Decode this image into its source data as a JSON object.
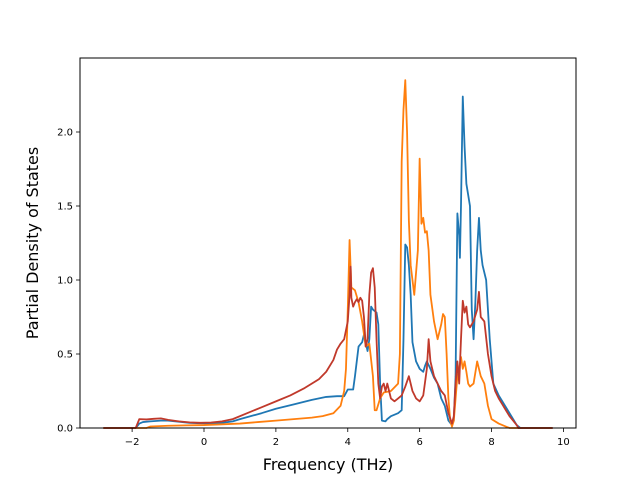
{
  "chart_data": {
    "type": "line",
    "title": "",
    "xlabel": "Frequency (THz)",
    "ylabel": "Partial Density of States",
    "xlim": [
      -3.45,
      10.35
    ],
    "ylim": [
      0,
      2.5
    ],
    "xticks": [
      -2,
      0,
      2,
      4,
      6,
      8,
      10
    ],
    "xtick_labels": [
      "−2",
      "0",
      "2",
      "4",
      "6",
      "8",
      "10"
    ],
    "yticks": [
      0,
      0.5,
      1.0,
      1.5,
      2.0
    ],
    "ytick_labels": [
      "0.0",
      "0.5",
      "1.0",
      "1.5",
      "2.0"
    ],
    "grid": false,
    "legend": "none",
    "series": [
      {
        "color": "#1f77b4",
        "points": [
          [
            -2.8,
            0
          ],
          [
            -1.9,
            0
          ],
          [
            -1.8,
            0.03
          ],
          [
            -1.7,
            0.04
          ],
          [
            -1.5,
            0.045
          ],
          [
            -1.2,
            0.05
          ],
          [
            -1.0,
            0.05
          ],
          [
            -0.8,
            0.045
          ],
          [
            -0.6,
            0.04
          ],
          [
            -0.4,
            0.035
          ],
          [
            -0.1,
            0.032
          ],
          [
            0.2,
            0.03
          ],
          [
            0.5,
            0.035
          ],
          [
            0.8,
            0.045
          ],
          [
            1.0,
            0.06
          ],
          [
            1.3,
            0.08
          ],
          [
            1.6,
            0.1
          ],
          [
            2.0,
            0.13
          ],
          [
            2.5,
            0.16
          ],
          [
            3.0,
            0.19
          ],
          [
            3.4,
            0.21
          ],
          [
            3.7,
            0.215
          ],
          [
            3.9,
            0.215
          ],
          [
            4.0,
            0.26
          ],
          [
            4.15,
            0.26
          ],
          [
            4.2,
            0.35
          ],
          [
            4.3,
            0.55
          ],
          [
            4.4,
            0.58
          ],
          [
            4.45,
            0.63
          ],
          [
            4.5,
            0.58
          ],
          [
            4.55,
            0.52
          ],
          [
            4.6,
            0.6
          ],
          [
            4.65,
            0.82
          ],
          [
            4.7,
            0.8
          ],
          [
            4.8,
            0.78
          ],
          [
            4.85,
            0.7
          ],
          [
            4.9,
            0.3
          ],
          [
            4.95,
            0.05
          ],
          [
            5.05,
            0.045
          ],
          [
            5.1,
            0.06
          ],
          [
            5.2,
            0.08
          ],
          [
            5.4,
            0.1
          ],
          [
            5.5,
            0.12
          ],
          [
            5.55,
            0.6
          ],
          [
            5.6,
            1.24
          ],
          [
            5.65,
            1.22
          ],
          [
            5.7,
            1.1
          ],
          [
            5.75,
            0.9
          ],
          [
            5.8,
            0.58
          ],
          [
            5.9,
            0.45
          ],
          [
            6.0,
            0.4
          ],
          [
            6.1,
            0.38
          ],
          [
            6.15,
            0.42
          ],
          [
            6.2,
            0.45
          ],
          [
            6.3,
            0.4
          ],
          [
            6.4,
            0.34
          ],
          [
            6.5,
            0.3
          ],
          [
            6.6,
            0.2
          ],
          [
            6.7,
            0.15
          ],
          [
            6.8,
            0.05
          ],
          [
            6.9,
            0.02
          ],
          [
            6.95,
            0.05
          ],
          [
            7.0,
            0.35
          ],
          [
            7.05,
            1.45
          ],
          [
            7.1,
            1.3
          ],
          [
            7.12,
            1.15
          ],
          [
            7.15,
            1.5
          ],
          [
            7.2,
            2.24
          ],
          [
            7.25,
            1.9
          ],
          [
            7.3,
            1.65
          ],
          [
            7.4,
            1.5
          ],
          [
            7.45,
            0.8
          ],
          [
            7.5,
            0.6
          ],
          [
            7.55,
            0.85
          ],
          [
            7.6,
            1.2
          ],
          [
            7.65,
            1.42
          ],
          [
            7.7,
            1.2
          ],
          [
            7.75,
            1.1
          ],
          [
            7.85,
            1.0
          ],
          [
            7.95,
            0.6
          ],
          [
            8.05,
            0.3
          ],
          [
            8.2,
            0.22
          ],
          [
            8.3,
            0.18
          ],
          [
            8.45,
            0.12
          ],
          [
            8.6,
            0.06
          ],
          [
            8.7,
            0.02
          ],
          [
            8.8,
            0
          ],
          [
            9.7,
            0
          ]
        ]
      },
      {
        "color": "#ff7f0e",
        "points": [
          [
            -2.8,
            0
          ],
          [
            -1.6,
            0
          ],
          [
            -1.5,
            0.01
          ],
          [
            -1.0,
            0.015
          ],
          [
            -0.5,
            0.018
          ],
          [
            0.0,
            0.02
          ],
          [
            0.5,
            0.025
          ],
          [
            1.0,
            0.03
          ],
          [
            1.5,
            0.04
          ],
          [
            2.0,
            0.05
          ],
          [
            2.5,
            0.06
          ],
          [
            3.0,
            0.07
          ],
          [
            3.3,
            0.08
          ],
          [
            3.6,
            0.1
          ],
          [
            3.8,
            0.15
          ],
          [
            3.9,
            0.25
          ],
          [
            3.95,
            0.4
          ],
          [
            4.0,
            0.8
          ],
          [
            4.05,
            1.27
          ],
          [
            4.1,
            0.95
          ],
          [
            4.2,
            0.93
          ],
          [
            4.3,
            0.85
          ],
          [
            4.4,
            0.72
          ],
          [
            4.5,
            0.55
          ],
          [
            4.6,
            0.57
          ],
          [
            4.7,
            0.35
          ],
          [
            4.75,
            0.12
          ],
          [
            4.8,
            0.12
          ],
          [
            4.9,
            0.2
          ],
          [
            5.0,
            0.24
          ],
          [
            5.2,
            0.25
          ],
          [
            5.4,
            0.3
          ],
          [
            5.45,
            0.5
          ],
          [
            5.5,
            1.8
          ],
          [
            5.55,
            2.15
          ],
          [
            5.6,
            2.35
          ],
          [
            5.65,
            2.0
          ],
          [
            5.7,
            1.4
          ],
          [
            5.75,
            1.1
          ],
          [
            5.85,
            0.9
          ],
          [
            5.95,
            1.2
          ],
          [
            6.0,
            1.82
          ],
          [
            6.05,
            1.38
          ],
          [
            6.1,
            1.42
          ],
          [
            6.15,
            1.32
          ],
          [
            6.2,
            1.33
          ],
          [
            6.25,
            1.2
          ],
          [
            6.3,
            0.9
          ],
          [
            6.4,
            0.72
          ],
          [
            6.5,
            0.6
          ],
          [
            6.6,
            0.7
          ],
          [
            6.65,
            0.77
          ],
          [
            6.7,
            0.75
          ],
          [
            6.75,
            0.5
          ],
          [
            6.8,
            0.2
          ],
          [
            6.85,
            0.05
          ],
          [
            6.9,
            0.01
          ],
          [
            6.95,
            0.05
          ],
          [
            7.0,
            0.2
          ],
          [
            7.05,
            0.35
          ],
          [
            7.1,
            0.4
          ],
          [
            7.15,
            0.48
          ],
          [
            7.2,
            0.4
          ],
          [
            7.25,
            0.45
          ],
          [
            7.3,
            0.38
          ],
          [
            7.35,
            0.3
          ],
          [
            7.4,
            0.28
          ],
          [
            7.5,
            0.3
          ],
          [
            7.6,
            0.45
          ],
          [
            7.65,
            0.4
          ],
          [
            7.7,
            0.35
          ],
          [
            7.8,
            0.3
          ],
          [
            7.9,
            0.15
          ],
          [
            8.0,
            0.06
          ],
          [
            8.2,
            0.03
          ],
          [
            8.4,
            0.01
          ],
          [
            8.5,
            0
          ],
          [
            9.7,
            0
          ]
        ]
      },
      {
        "color": "#c0392b",
        "points": [
          [
            -2.8,
            0
          ],
          [
            -1.9,
            0
          ],
          [
            -1.8,
            0.06
          ],
          [
            -1.6,
            0.058
          ],
          [
            -1.4,
            0.062
          ],
          [
            -1.2,
            0.065
          ],
          [
            -1.0,
            0.055
          ],
          [
            -0.7,
            0.045
          ],
          [
            -0.4,
            0.038
          ],
          [
            -0.1,
            0.035
          ],
          [
            0.2,
            0.037
          ],
          [
            0.5,
            0.045
          ],
          [
            0.8,
            0.06
          ],
          [
            1.2,
            0.1
          ],
          [
            1.6,
            0.14
          ],
          [
            2.0,
            0.18
          ],
          [
            2.4,
            0.22
          ],
          [
            2.8,
            0.27
          ],
          [
            3.2,
            0.33
          ],
          [
            3.4,
            0.38
          ],
          [
            3.6,
            0.46
          ],
          [
            3.7,
            0.53
          ],
          [
            3.8,
            0.57
          ],
          [
            3.9,
            0.6
          ],
          [
            4.0,
            0.72
          ],
          [
            4.05,
            0.9
          ],
          [
            4.08,
            1.09
          ],
          [
            4.1,
            0.88
          ],
          [
            4.15,
            0.82
          ],
          [
            4.2,
            0.85
          ],
          [
            4.25,
            0.87
          ],
          [
            4.3,
            0.85
          ],
          [
            4.35,
            0.88
          ],
          [
            4.4,
            0.86
          ],
          [
            4.45,
            0.75
          ],
          [
            4.5,
            0.55
          ],
          [
            4.55,
            0.6
          ],
          [
            4.6,
            0.9
          ],
          [
            4.65,
            1.05
          ],
          [
            4.7,
            1.08
          ],
          [
            4.75,
            0.95
          ],
          [
            4.8,
            0.6
          ],
          [
            4.85,
            0.3
          ],
          [
            4.9,
            0.2
          ],
          [
            4.95,
            0.28
          ],
          [
            5.0,
            0.3
          ],
          [
            5.05,
            0.25
          ],
          [
            5.1,
            0.3
          ],
          [
            5.2,
            0.2
          ],
          [
            5.3,
            0.18
          ],
          [
            5.4,
            0.2
          ],
          [
            5.5,
            0.22
          ],
          [
            5.6,
            0.28
          ],
          [
            5.7,
            0.35
          ],
          [
            5.75,
            0.3
          ],
          [
            5.8,
            0.25
          ],
          [
            5.9,
            0.2
          ],
          [
            6.0,
            0.18
          ],
          [
            6.1,
            0.22
          ],
          [
            6.2,
            0.4
          ],
          [
            6.25,
            0.6
          ],
          [
            6.3,
            0.45
          ],
          [
            6.4,
            0.35
          ],
          [
            6.5,
            0.3
          ],
          [
            6.6,
            0.25
          ],
          [
            6.7,
            0.22
          ],
          [
            6.8,
            0.1
          ],
          [
            6.9,
            0.03
          ],
          [
            6.95,
            0.08
          ],
          [
            7.0,
            0.3
          ],
          [
            7.05,
            0.45
          ],
          [
            7.1,
            0.3
          ],
          [
            7.15,
            0.6
          ],
          [
            7.2,
            0.86
          ],
          [
            7.25,
            0.78
          ],
          [
            7.3,
            0.82
          ],
          [
            7.35,
            0.7
          ],
          [
            7.4,
            0.68
          ],
          [
            7.5,
            0.72
          ],
          [
            7.6,
            0.8
          ],
          [
            7.65,
            0.92
          ],
          [
            7.7,
            0.75
          ],
          [
            7.8,
            0.72
          ],
          [
            7.9,
            0.5
          ],
          [
            8.0,
            0.35
          ],
          [
            8.1,
            0.25
          ],
          [
            8.2,
            0.2
          ],
          [
            8.3,
            0.16
          ],
          [
            8.4,
            0.12
          ],
          [
            8.5,
            0.08
          ],
          [
            8.6,
            0.05
          ],
          [
            8.7,
            0.02
          ],
          [
            8.75,
            0
          ],
          [
            9.7,
            0
          ]
        ]
      }
    ]
  }
}
